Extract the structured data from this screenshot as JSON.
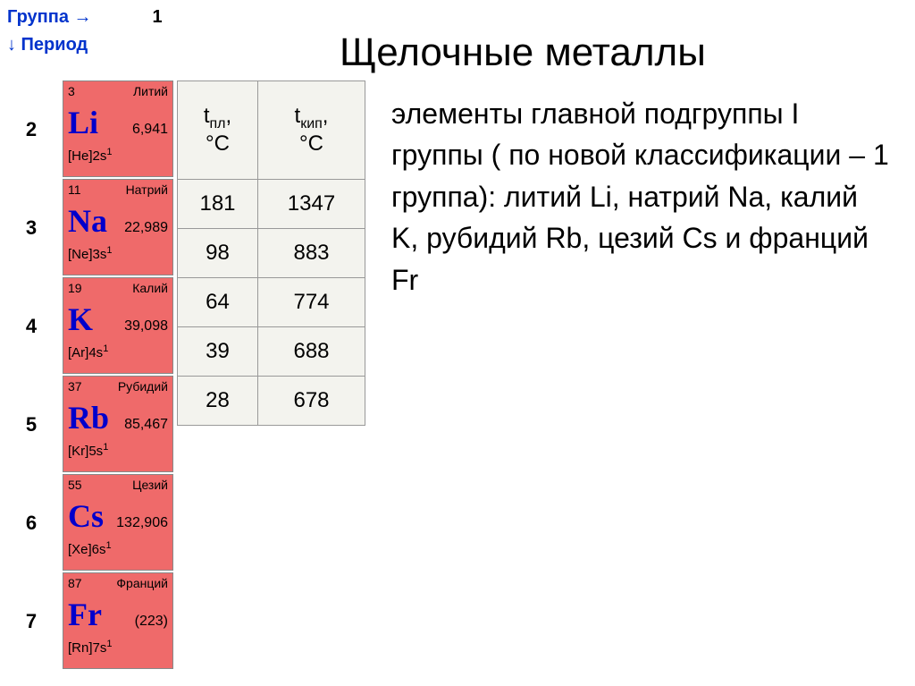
{
  "header": {
    "group_label": "Группа →",
    "group_number": "1",
    "period_label": "↓ Период"
  },
  "title": "Щелочные металлы",
  "body_text": "элементы главной подгруппы I группы ( по новой классификации – 1 группа): литий Li, натрий Na, калий K, рубидий Rb, цезий Cs и франций Fr",
  "periods": [
    "2",
    "3",
    "4",
    "5",
    "6",
    "7"
  ],
  "elements": [
    {
      "num": "3",
      "name": "Литий",
      "symbol": "Li",
      "mass": "6,941",
      "config": "[He]2s",
      "config_sup": "1"
    },
    {
      "num": "11",
      "name": "Натрий",
      "symbol": "Na",
      "mass": "22,989",
      "config": "[Ne]3s",
      "config_sup": "1"
    },
    {
      "num": "19",
      "name": "Калий",
      "symbol": "K",
      "mass": "39,098",
      "config": "[Ar]4s",
      "config_sup": "1"
    },
    {
      "num": "37",
      "name": "Рубидий",
      "symbol": "Rb",
      "mass": "85,467",
      "config": "[Kr]5s",
      "config_sup": "1"
    },
    {
      "num": "55",
      "name": "Цезий",
      "symbol": "Cs",
      "mass": "132,906",
      "config": "[Xe]6s",
      "config_sup": "1"
    },
    {
      "num": "87",
      "name": "Франций",
      "symbol": "Fr",
      "mass": "(223)",
      "config": "[Rn]7s",
      "config_sup": "1"
    }
  ],
  "props": {
    "col1_header_main": "t",
    "col1_header_sub": "пл",
    "col1_header_unit": "°C",
    "col2_header_main": "t",
    "col2_header_sub": "кип",
    "col2_header_unit": "°C",
    "rows": [
      {
        "tpl": "181",
        "tkip": "1347"
      },
      {
        "tpl": "98",
        "tkip": "883"
      },
      {
        "tpl": "64",
        "tkip": "774"
      },
      {
        "tpl": "39",
        "tkip": "688"
      },
      {
        "tpl": "28",
        "tkip": "678"
      }
    ]
  },
  "colors": {
    "element_bg": "#ef6a6a",
    "symbol_color": "#0000cc",
    "label_color": "#0033cc",
    "table_bg": "#f3f3ee",
    "border": "#999999"
  }
}
